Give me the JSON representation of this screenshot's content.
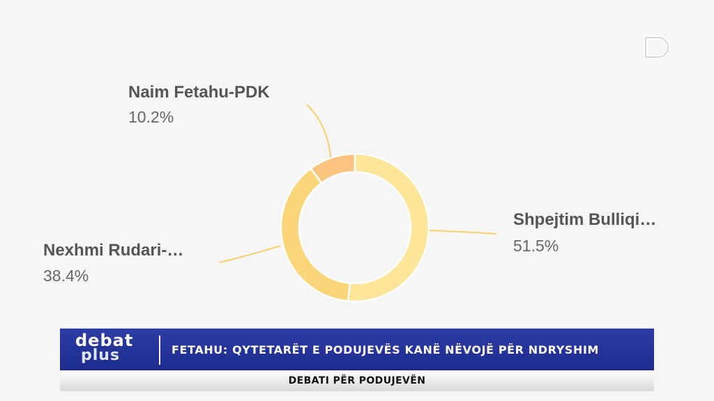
{
  "chart_data": {
    "type": "pie",
    "series": [
      {
        "name": "Shpejtim Bulliqi…",
        "value": 51.5,
        "label": "51.5%",
        "color": "#fde59a"
      },
      {
        "name": "Nexhmi Rudari-…",
        "value": 38.4,
        "label": "38.4%",
        "color": "#fbd57a"
      },
      {
        "name": "Naim Fetahu-PDK",
        "value": 10.2,
        "label": "10.2%",
        "color": "#fbc581"
      }
    ]
  },
  "ticker": {
    "brand_top": "debat",
    "brand_bottom": "plus",
    "headline": "FETAHU: QYTETARËT E PODUJEVËS KANË NËVOJË PËR NDRYSHIM",
    "subtitle": "DEBATI PËR PODUJEVËN"
  },
  "colors": {
    "ticker_blue": "#23309a",
    "leader_line": "#f6cf6e"
  }
}
